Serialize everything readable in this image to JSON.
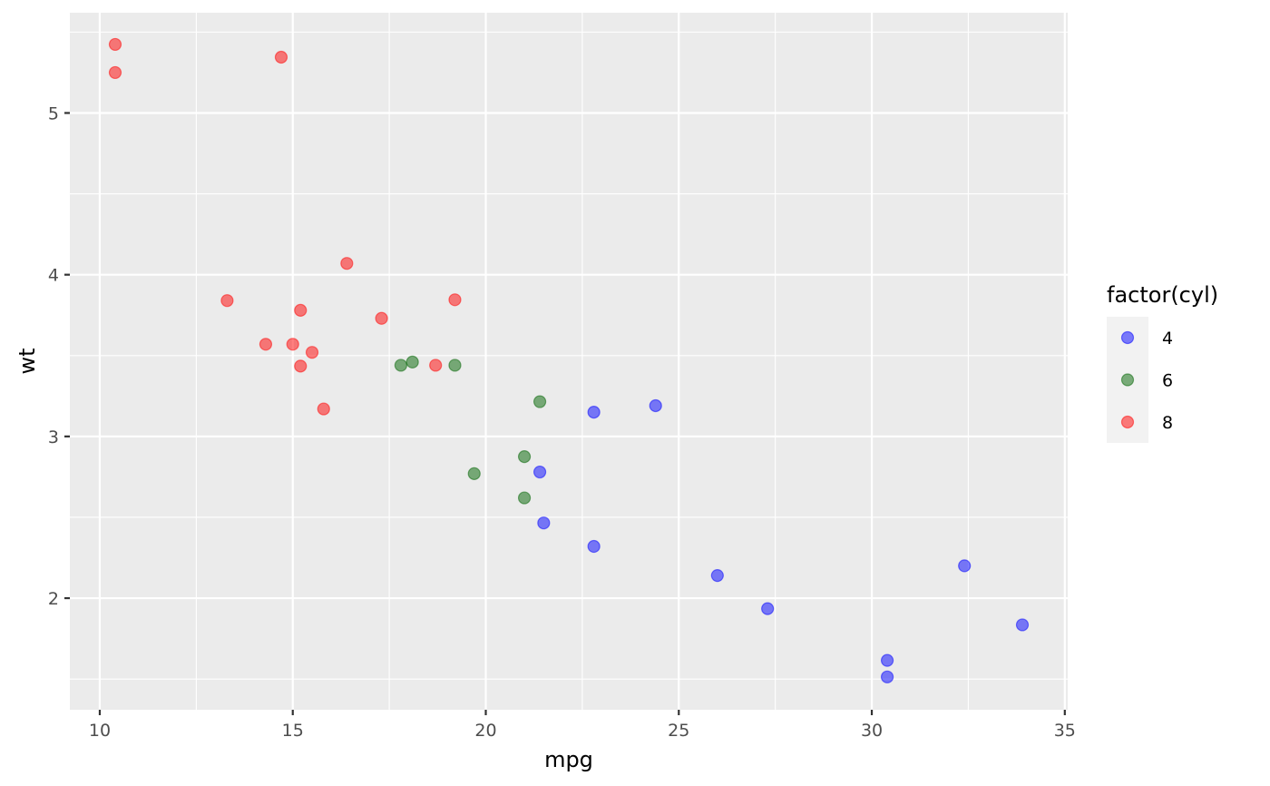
{
  "chart_data": {
    "type": "scatter",
    "xlabel": "mpg",
    "ylabel": "wt",
    "xlim": [
      9.225,
      35.075
    ],
    "ylim": [
      1.31,
      5.62
    ],
    "x_ticks": [
      10,
      15,
      20,
      25,
      30,
      35
    ],
    "y_ticks": [
      2,
      3,
      4,
      5
    ],
    "x_tick_labels": [
      "10",
      "15",
      "20",
      "25",
      "30",
      "35"
    ],
    "y_tick_labels": [
      "2",
      "3",
      "4",
      "5"
    ],
    "grid": true,
    "legend": {
      "title": "factor(cyl)",
      "position": "right"
    },
    "colors": {
      "panel_bg": "#ebebeb",
      "grid": "#ffffff",
      "legend_key_bg": "#f2f2f2"
    },
    "series": [
      {
        "name": "4",
        "color": "#0000ff",
        "points": [
          [
            22.8,
            2.32
          ],
          [
            24.4,
            3.19
          ],
          [
            22.8,
            3.15
          ],
          [
            32.4,
            2.2
          ],
          [
            30.4,
            1.615
          ],
          [
            33.9,
            1.835
          ],
          [
            21.5,
            2.465
          ],
          [
            27.3,
            1.935
          ],
          [
            26.0,
            2.14
          ],
          [
            30.4,
            1.513
          ],
          [
            21.4,
            2.78
          ]
        ]
      },
      {
        "name": "6",
        "color": "#006400",
        "points": [
          [
            21.0,
            2.62
          ],
          [
            21.0,
            2.875
          ],
          [
            21.4,
            3.215
          ],
          [
            18.1,
            3.46
          ],
          [
            19.2,
            3.44
          ],
          [
            17.8,
            3.44
          ],
          [
            19.7,
            2.77
          ]
        ]
      },
      {
        "name": "8",
        "color": "#ff0000",
        "points": [
          [
            18.7,
            3.44
          ],
          [
            14.3,
            3.57
          ],
          [
            16.4,
            4.07
          ],
          [
            17.3,
            3.73
          ],
          [
            15.2,
            3.78
          ],
          [
            10.4,
            5.25
          ],
          [
            10.4,
            5.424
          ],
          [
            14.7,
            5.345
          ],
          [
            15.5,
            3.52
          ],
          [
            15.2,
            3.435
          ],
          [
            13.3,
            3.84
          ],
          [
            19.2,
            3.845
          ],
          [
            15.8,
            3.17
          ],
          [
            15.0,
            3.57
          ]
        ]
      }
    ]
  }
}
